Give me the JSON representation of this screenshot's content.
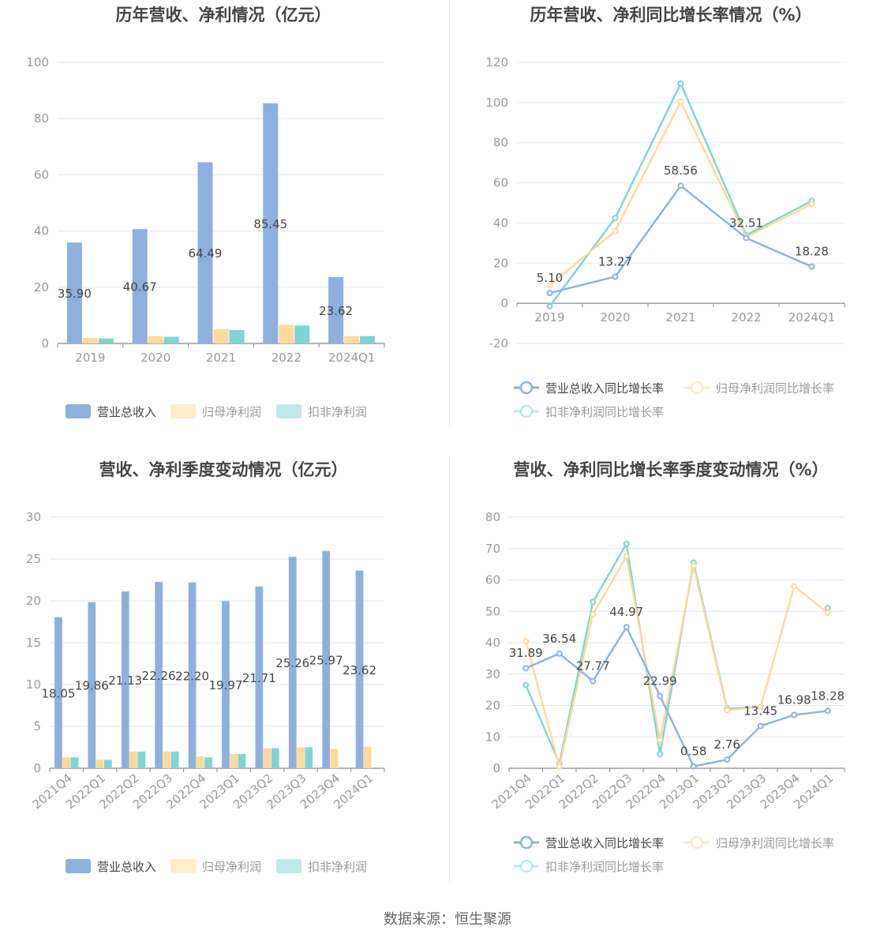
{
  "source": "数据来源：恒生聚源",
  "colors": {
    "revenue": "#8eb0dd",
    "net_profit": "#fdd99b",
    "deducted_profit": "#7fd4d4"
  },
  "legend_labels": {
    "bar": [
      "营业总收入",
      "归母净利润",
      "扣非净利润"
    ],
    "line": [
      "营业总收入同比增长率",
      "归母净利润同比增长率",
      "扣非净利润同比增长率"
    ]
  },
  "chart_data": [
    {
      "type": "bar",
      "title": "历年营收、净利情况（亿元）",
      "categories": [
        "2019",
        "2020",
        "2021",
        "2022",
        "2024Q1"
      ],
      "ylim": [
        0,
        100
      ],
      "yticks": [
        0,
        20,
        40,
        60,
        80,
        100
      ],
      "grid": true,
      "legend": "bottom",
      "series": [
        {
          "name": "营业总收入",
          "values": [
            35.9,
            40.67,
            64.49,
            85.45,
            23.62
          ],
          "labels": [
            "35.90",
            "40.67",
            "64.49",
            "85.45",
            "23.62"
          ]
        },
        {
          "name": "归母净利润",
          "values": [
            2.0,
            2.6,
            5.0,
            6.6,
            2.6
          ]
        },
        {
          "name": "扣非净利润",
          "values": [
            1.8,
            2.4,
            4.8,
            6.4,
            2.6
          ]
        }
      ]
    },
    {
      "type": "line",
      "title": "历年营收、净利同比增长率情况（%）",
      "categories": [
        "2019",
        "2020",
        "2021",
        "2022",
        "2024Q1"
      ],
      "ylim": [
        -20,
        120
      ],
      "yticks": [
        -20,
        0,
        20,
        40,
        60,
        80,
        100,
        120
      ],
      "grid": true,
      "legend": "bottom",
      "series": [
        {
          "name": "营业总收入同比增长率",
          "values": [
            5.1,
            13.27,
            58.56,
            32.51,
            18.28
          ],
          "labels": [
            "5.10",
            "13.27",
            "58.56",
            "32.51",
            "18.28"
          ]
        },
        {
          "name": "归母净利润同比增长率",
          "values": [
            9,
            36,
            100.5,
            33,
            49.5
          ]
        },
        {
          "name": "扣非净利润同比增长率",
          "values": [
            -1.5,
            42.5,
            109.5,
            34,
            51
          ]
        }
      ]
    },
    {
      "type": "bar",
      "title": "营收、净利季度变动情况（亿元）",
      "categories": [
        "2021Q4",
        "2022Q1",
        "2022Q2",
        "2022Q3",
        "2022Q4",
        "2023Q1",
        "2023Q2",
        "2023Q3",
        "2023Q4",
        "2024Q1"
      ],
      "ylim": [
        0,
        30
      ],
      "yticks": [
        0,
        5,
        10,
        15,
        20,
        25,
        30
      ],
      "grid": true,
      "legend": "bottom",
      "series": [
        {
          "name": "营业总收入",
          "values": [
            18.05,
            19.86,
            21.13,
            22.26,
            22.2,
            19.97,
            21.71,
            25.26,
            25.97,
            23.62
          ],
          "labels": [
            "18.05",
            "19.86",
            "21.13",
            "22.26",
            "22.20",
            "19.97",
            "21.71",
            "25.26",
            "25.97",
            "23.62"
          ]
        },
        {
          "name": "归母净利润",
          "values": [
            1.3,
            1.0,
            2.0,
            2.0,
            1.4,
            1.7,
            2.4,
            2.5,
            2.3,
            2.6
          ]
        },
        {
          "name": "扣非净利润",
          "values": [
            1.3,
            1.0,
            2.0,
            2.0,
            1.3,
            1.7,
            2.4,
            2.5,
            null,
            null
          ]
        }
      ]
    },
    {
      "type": "line",
      "title": "营收、净利同比增长率季度变动情况（%）",
      "categories": [
        "2021Q4",
        "2022Q1",
        "2022Q2",
        "2022Q3",
        "2022Q4",
        "2023Q1",
        "2023Q2",
        "2023Q3",
        "2023Q4",
        "2024Q1"
      ],
      "ylim": [
        0,
        80
      ],
      "yticks": [
        0,
        10,
        20,
        30,
        40,
        50,
        60,
        70,
        80
      ],
      "grid": true,
      "legend": "bottom",
      "series": [
        {
          "name": "营业总收入同比增长率",
          "values": [
            31.89,
            36.54,
            27.77,
            44.97,
            22.99,
            0.58,
            2.76,
            13.45,
            16.98,
            18.28
          ],
          "labels": [
            "31.89",
            "36.54",
            "27.77",
            "44.97",
            "22.99",
            "0.58",
            "2.76",
            "13.45",
            "16.98",
            "18.28"
          ]
        },
        {
          "name": "归母净利润同比增长率",
          "values": [
            40.5,
            0.5,
            49,
            67.5,
            9,
            64.5,
            18.5,
            19.5,
            58,
            49.5
          ]
        },
        {
          "name": "扣非净利润同比增长率",
          "values": [
            26.5,
            1.5,
            53,
            71.5,
            4.5,
            65.5,
            19,
            19.5,
            null,
            51
          ]
        }
      ]
    }
  ]
}
